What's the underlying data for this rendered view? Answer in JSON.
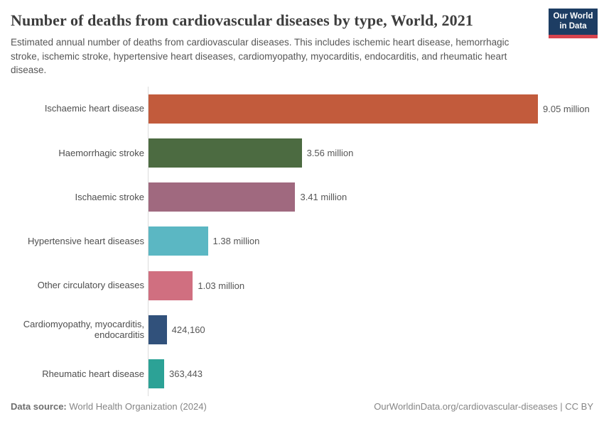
{
  "header": {
    "title": "Number of deaths from cardiovascular diseases by type, World, 2021",
    "subtitle": "Estimated annual number of deaths from cardiovascular diseases. This includes ischemic heart disease, hemorrhagic stroke, ischemic stroke, hypertensive heart diseases, cardiomyopathy, myocarditis, endocarditis, and rheumatic heart disease.",
    "logo": {
      "line1": "Our World",
      "line2": "in Data",
      "bg_color": "#1d3d63",
      "accent_color": "#d7444e"
    }
  },
  "chart_data": {
    "type": "bar",
    "orientation": "horizontal",
    "title": "Number of deaths from cardiovascular diseases by type, World, 2021",
    "xlabel": "",
    "ylabel": "",
    "xlim": [
      0,
      9050000
    ],
    "grid": false,
    "legend": false,
    "categories": [
      "Ischaemic heart disease",
      "Haemorrhagic stroke",
      "Ischaemic stroke",
      "Hypertensive heart diseases",
      "Other circulatory diseases",
      "Cardiomyopathy, myocarditis, endocarditis",
      "Rheumatic heart disease"
    ],
    "values": [
      9050000,
      3560000,
      3410000,
      1380000,
      1030000,
      424160,
      363443
    ],
    "value_labels": [
      "9.05 million",
      "3.56 million",
      "3.41 million",
      "1.38 million",
      "1.03 million",
      "424,160",
      "363,443"
    ],
    "colors": [
      "#C25B3C",
      "#4C6B41",
      "#A0697F",
      "#5BB7C3",
      "#D06F80",
      "#31517B",
      "#2CA296"
    ]
  },
  "footer": {
    "datasource_label": "Data source:",
    "datasource_value": "World Health Organization (2024)",
    "right_text": "OurWorldinData.org/cardiovascular-diseases | CC BY"
  }
}
